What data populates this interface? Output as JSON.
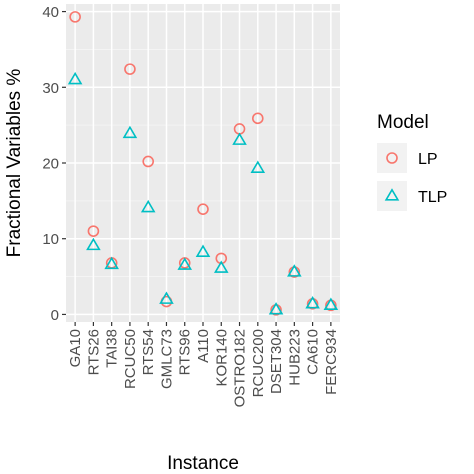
{
  "chart_data": {
    "type": "scatter",
    "xlabel": "Instance",
    "ylabel": "Fractional Variables %",
    "ylim": [
      -1,
      41
    ],
    "yticks": [
      0,
      10,
      20,
      30,
      40
    ],
    "grid": true,
    "legend_position": "right",
    "legend_title": "Model",
    "categories": [
      "GA10",
      "RTS26",
      "TAI38",
      "RCUC50",
      "RTS54",
      "GMLC73",
      "RTS96",
      "A110",
      "KOR140",
      "OSTRO182",
      "RCUC200",
      "DSET304",
      "HUB223",
      "CA610",
      "FERC934"
    ],
    "series": [
      {
        "name": "LP",
        "marker": "circle",
        "color": "#F8766D",
        "values": [
          39.3,
          11.0,
          6.8,
          32.4,
          20.2,
          1.7,
          6.8,
          13.9,
          7.4,
          24.5,
          25.9,
          0.6,
          5.6,
          1.4,
          1.2
        ]
      },
      {
        "name": "TLP",
        "marker": "triangle",
        "color": "#00BFC4",
        "values": [
          31.0,
          9.1,
          6.6,
          23.9,
          14.1,
          2.0,
          6.5,
          8.2,
          6.1,
          23.0,
          19.3,
          0.6,
          5.6,
          1.4,
          1.2
        ]
      }
    ]
  }
}
